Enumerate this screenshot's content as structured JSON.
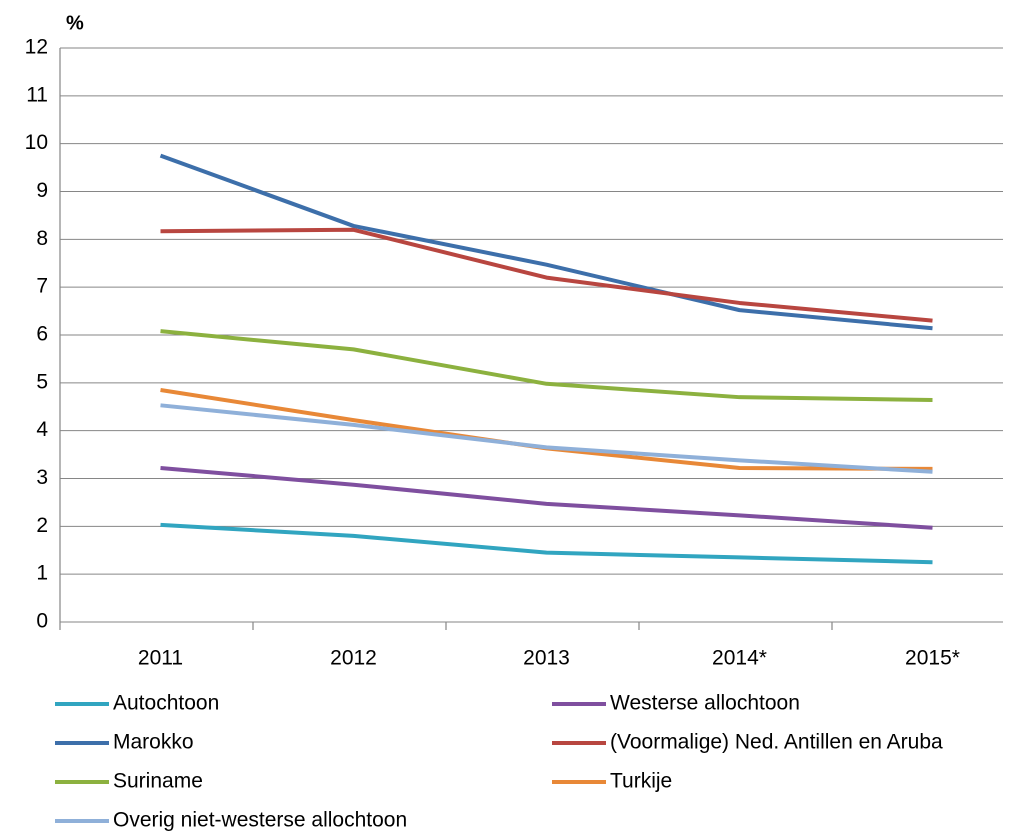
{
  "chart_data": {
    "type": "line",
    "y_label": "%",
    "categories": [
      "2011",
      "2012",
      "2013",
      "2014*",
      "2015*"
    ],
    "series": [
      {
        "name": "Autochtoon",
        "color": "#31a5c0",
        "values": [
          2.03,
          1.8,
          1.45,
          1.35,
          1.25
        ]
      },
      {
        "name": "Westerse allochtoon",
        "color": "#7f4f9f",
        "values": [
          3.22,
          2.87,
          2.47,
          2.23,
          1.97
        ]
      },
      {
        "name": "Marokko",
        "color": "#3d6faa",
        "values": [
          9.75,
          8.28,
          7.47,
          6.52,
          6.14
        ]
      },
      {
        "name": "(Voormalige) Ned. Antillen en Aruba",
        "color": "#b84640",
        "values": [
          8.17,
          8.2,
          7.2,
          6.67,
          6.3
        ]
      },
      {
        "name": "Suriname",
        "color": "#8cb13f",
        "values": [
          6.08,
          5.7,
          4.98,
          4.7,
          4.64
        ]
      },
      {
        "name": "Turkije",
        "color": "#e88837",
        "values": [
          4.85,
          4.22,
          3.63,
          3.22,
          3.2
        ]
      },
      {
        "name": "Overig niet-westerse allochtoon",
        "color": "#8fb0d9",
        "values": [
          4.53,
          4.12,
          3.65,
          3.38,
          3.14
        ]
      }
    ],
    "ylim": [
      0,
      12
    ],
    "yticks": [
      0,
      1,
      2,
      3,
      4,
      5,
      6,
      7,
      8,
      9,
      10,
      11,
      12
    ],
    "grid": true,
    "legend": "bottom"
  }
}
